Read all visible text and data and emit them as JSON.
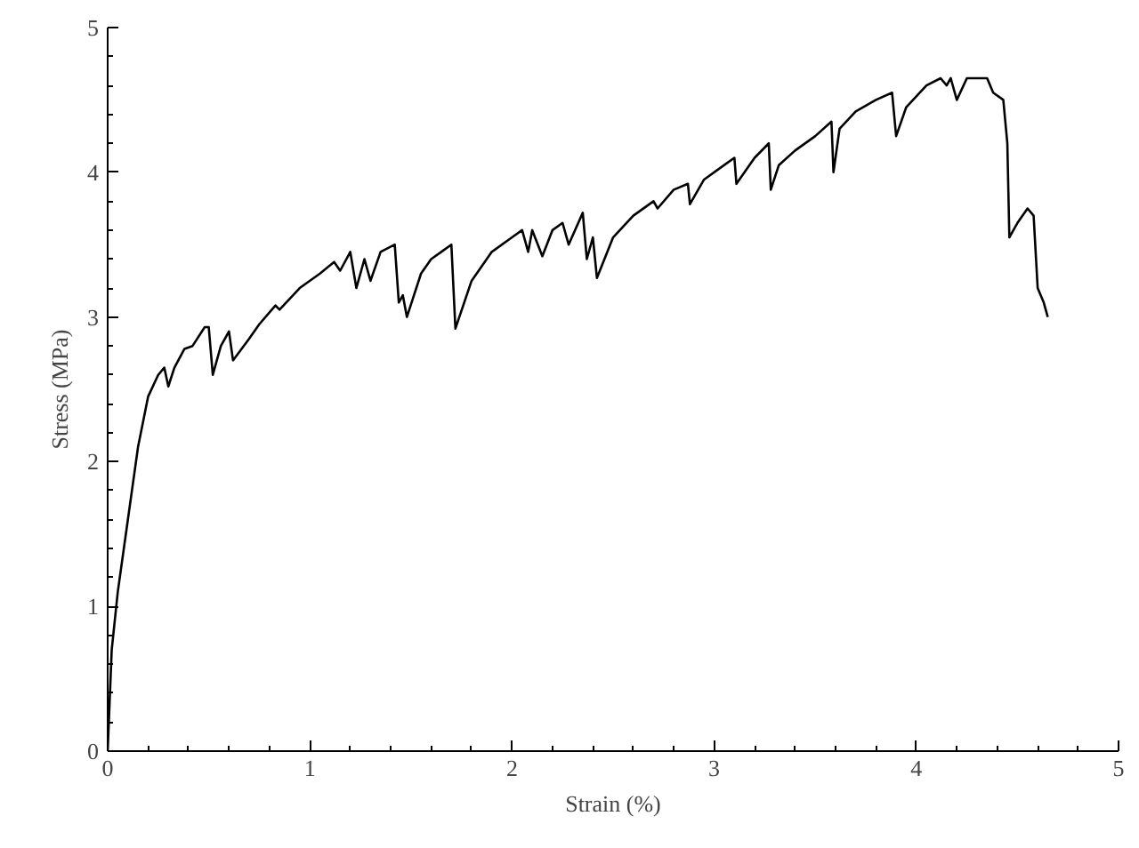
{
  "chart_data": {
    "type": "line",
    "xlabel": "Strain (%)",
    "ylabel": "Stress (MPa)",
    "xlim": [
      0,
      5
    ],
    "ylim": [
      0,
      5
    ],
    "xticks": [
      0,
      1,
      2,
      3,
      4,
      5
    ],
    "yticks": [
      0,
      1,
      2,
      3,
      4,
      5
    ],
    "grid": false,
    "marker": "none",
    "line_style": "solid",
    "series": [
      {
        "color": "#000000",
        "x": [
          0,
          0.02,
          0.05,
          0.1,
          0.15,
          0.2,
          0.25,
          0.28,
          0.3,
          0.33,
          0.38,
          0.42,
          0.48,
          0.5,
          0.52,
          0.56,
          0.6,
          0.62,
          0.7,
          0.75,
          0.83,
          0.85,
          0.95,
          1.05,
          1.12,
          1.15,
          1.2,
          1.23,
          1.27,
          1.3,
          1.35,
          1.42,
          1.44,
          1.46,
          1.48,
          1.55,
          1.6,
          1.65,
          1.7,
          1.72,
          1.8,
          1.9,
          2.0,
          2.05,
          2.08,
          2.1,
          2.15,
          2.2,
          2.25,
          2.28,
          2.35,
          2.37,
          2.4,
          2.42,
          2.5,
          2.6,
          2.7,
          2.72,
          2.8,
          2.87,
          2.88,
          2.95,
          3.05,
          3.1,
          3.11,
          3.2,
          3.27,
          3.28,
          3.32,
          3.4,
          3.5,
          3.58,
          3.59,
          3.62,
          3.7,
          3.8,
          3.88,
          3.9,
          3.95,
          4.05,
          4.12,
          4.15,
          4.17,
          4.2,
          4.25,
          4.35,
          4.38,
          4.43,
          4.45,
          4.46,
          4.5,
          4.55,
          4.58,
          4.6,
          4.63,
          4.65
        ],
        "values": [
          0,
          0.7,
          1.1,
          1.6,
          2.1,
          2.45,
          2.6,
          2.65,
          2.52,
          2.65,
          2.78,
          2.8,
          2.93,
          2.93,
          2.6,
          2.8,
          2.9,
          2.7,
          2.85,
          2.95,
          3.08,
          3.05,
          3.2,
          3.3,
          3.38,
          3.32,
          3.45,
          3.2,
          3.4,
          3.25,
          3.45,
          3.5,
          3.1,
          3.15,
          3.0,
          3.3,
          3.4,
          3.45,
          3.5,
          2.92,
          3.25,
          3.45,
          3.55,
          3.6,
          3.45,
          3.6,
          3.42,
          3.6,
          3.65,
          3.5,
          3.72,
          3.4,
          3.55,
          3.27,
          3.55,
          3.7,
          3.8,
          3.75,
          3.88,
          3.92,
          3.78,
          3.95,
          4.05,
          4.1,
          3.92,
          4.1,
          4.2,
          3.88,
          4.05,
          4.15,
          4.25,
          4.35,
          4.0,
          4.3,
          4.42,
          4.5,
          4.55,
          4.25,
          4.45,
          4.6,
          4.65,
          4.6,
          4.65,
          4.5,
          4.65,
          4.65,
          4.55,
          4.5,
          4.2,
          3.55,
          3.65,
          3.75,
          3.7,
          3.2,
          3.1,
          3.0
        ]
      }
    ]
  }
}
